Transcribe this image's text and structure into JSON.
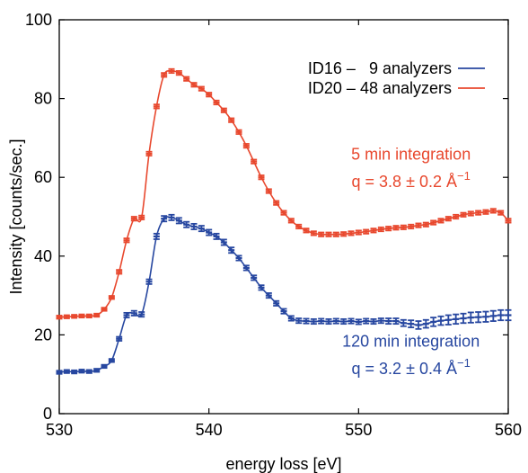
{
  "chart_data": {
    "type": "line",
    "title": "",
    "xlabel": "energy loss [eV]",
    "ylabel": "Intensity  [counts/sec.]",
    "xlim": [
      530,
      560
    ],
    "ylim": [
      0,
      100
    ],
    "xticks": [
      530,
      540,
      550,
      560
    ],
    "yticks": [
      0,
      20,
      40,
      60,
      80,
      100
    ],
    "grid": false,
    "legend_position": "top-right",
    "series": [
      {
        "name": "ID16 –   9 analyzers",
        "color": "#2747a0",
        "marker": "errorbar",
        "x": [
          530.0,
          530.5,
          531.0,
          531.5,
          532.0,
          532.5,
          533.0,
          533.5,
          534.0,
          534.5,
          535.0,
          535.5,
          536.0,
          536.5,
          537.0,
          537.5,
          538.0,
          538.5,
          539.0,
          539.5,
          540.0,
          540.5,
          541.0,
          541.5,
          542.0,
          542.5,
          543.0,
          543.5,
          544.0,
          544.5,
          545.0,
          545.5,
          546.0,
          546.5,
          547.0,
          547.5,
          548.0,
          548.5,
          549.0,
          549.5,
          550.0,
          550.5,
          551.0,
          551.5,
          552.0,
          552.5,
          553.0,
          553.5,
          554.0,
          554.5,
          555.0,
          555.5,
          556.0,
          556.5,
          557.0,
          557.5,
          558.0,
          558.5,
          559.0,
          559.5,
          560.0
        ],
        "y": [
          10.5,
          10.7,
          10.6,
          10.8,
          10.7,
          11.0,
          12.0,
          13.5,
          19.0,
          25.0,
          25.5,
          25.2,
          33.5,
          45.0,
          49.5,
          49.8,
          49.0,
          48.0,
          47.5,
          47.0,
          46.0,
          45.0,
          43.5,
          41.5,
          39.5,
          37.0,
          34.5,
          32.0,
          30.0,
          28.0,
          26.0,
          24.2,
          23.6,
          23.5,
          23.4,
          23.5,
          23.4,
          23.5,
          23.4,
          23.5,
          23.3,
          23.5,
          23.4,
          23.6,
          23.5,
          23.5,
          23.0,
          22.8,
          22.5,
          22.8,
          23.3,
          23.6,
          23.8,
          24.0,
          24.2,
          24.4,
          24.5,
          24.6,
          24.8,
          25.0,
          25.0
        ],
        "errors": [
          0.4,
          0.4,
          0.4,
          0.4,
          0.4,
          0.4,
          0.4,
          0.4,
          0.5,
          0.6,
          0.6,
          0.6,
          0.6,
          0.7,
          0.7,
          0.7,
          0.7,
          0.7,
          0.7,
          0.7,
          0.7,
          0.7,
          0.7,
          0.7,
          0.6,
          0.6,
          0.6,
          0.6,
          0.6,
          0.6,
          0.6,
          0.6,
          0.6,
          0.6,
          0.6,
          0.6,
          0.6,
          0.6,
          0.6,
          0.6,
          0.6,
          0.6,
          0.6,
          0.6,
          0.7,
          0.7,
          0.8,
          0.9,
          1.0,
          1.0,
          1.1,
          1.1,
          1.2,
          1.2,
          1.2,
          1.3,
          1.3,
          1.3,
          1.3,
          1.3,
          1.3
        ]
      },
      {
        "name": "ID20 – 48 analyzers",
        "color": "#e8482e",
        "marker": "errorbar",
        "x": [
          530.0,
          530.5,
          531.0,
          531.5,
          532.0,
          532.5,
          533.0,
          533.5,
          534.0,
          534.5,
          535.0,
          535.5,
          536.0,
          536.5,
          537.0,
          537.5,
          538.0,
          538.5,
          539.0,
          539.5,
          540.0,
          540.5,
          541.0,
          541.5,
          542.0,
          542.5,
          543.0,
          543.5,
          544.0,
          544.5,
          545.0,
          545.5,
          546.0,
          546.5,
          547.0,
          547.5,
          548.0,
          548.5,
          549.0,
          549.5,
          550.0,
          550.5,
          551.0,
          551.5,
          552.0,
          552.5,
          553.0,
          553.5,
          554.0,
          554.5,
          555.0,
          555.5,
          556.0,
          556.5,
          557.0,
          557.5,
          558.0,
          558.5,
          559.0,
          559.5,
          560.0
        ],
        "y": [
          24.5,
          24.6,
          24.7,
          24.8,
          24.8,
          25.0,
          26.5,
          29.5,
          36.0,
          44.0,
          49.5,
          49.8,
          66.0,
          78.0,
          86.0,
          87.0,
          86.5,
          85.0,
          83.5,
          82.5,
          81.0,
          79.0,
          77.0,
          74.5,
          71.5,
          68.0,
          64.0,
          60.0,
          56.5,
          53.5,
          51.0,
          49.0,
          47.5,
          46.5,
          45.8,
          45.5,
          45.5,
          45.5,
          45.6,
          45.8,
          46.0,
          46.2,
          46.5,
          46.8,
          47.0,
          47.2,
          47.3,
          47.5,
          47.8,
          48.0,
          48.5,
          49.0,
          49.5,
          50.0,
          50.5,
          50.8,
          51.0,
          51.2,
          51.5,
          51.0,
          49.0
        ],
        "errors": [
          0.4,
          0.4,
          0.4,
          0.4,
          0.4,
          0.4,
          0.4,
          0.4,
          0.5,
          0.5,
          0.5,
          0.5,
          0.5,
          0.5,
          0.5,
          0.5,
          0.5,
          0.5,
          0.5,
          0.5,
          0.5,
          0.5,
          0.5,
          0.5,
          0.5,
          0.5,
          0.5,
          0.5,
          0.5,
          0.5,
          0.5,
          0.5,
          0.5,
          0.5,
          0.5,
          0.5,
          0.5,
          0.5,
          0.5,
          0.5,
          0.5,
          0.5,
          0.5,
          0.5,
          0.5,
          0.5,
          0.5,
          0.5,
          0.5,
          0.5,
          0.5,
          0.5,
          0.5,
          0.5,
          0.5,
          0.5,
          0.5,
          0.5,
          0.5,
          0.5,
          0.5
        ]
      }
    ],
    "annotations": [
      {
        "lines": [
          "5 min integration",
          "q = 3.8 ± 0.2 Å"
        ],
        "superscript": "−1",
        "color": "#e8482e",
        "x": 553.5,
        "y": [
          64.5,
          57.5
        ]
      },
      {
        "lines": [
          "120 min integration",
          "q = 3.2 ± 0.4 Å"
        ],
        "superscript": "−1",
        "color": "#2747a0",
        "x": 553.5,
        "y": [
          17.0,
          10.0
        ]
      }
    ]
  }
}
